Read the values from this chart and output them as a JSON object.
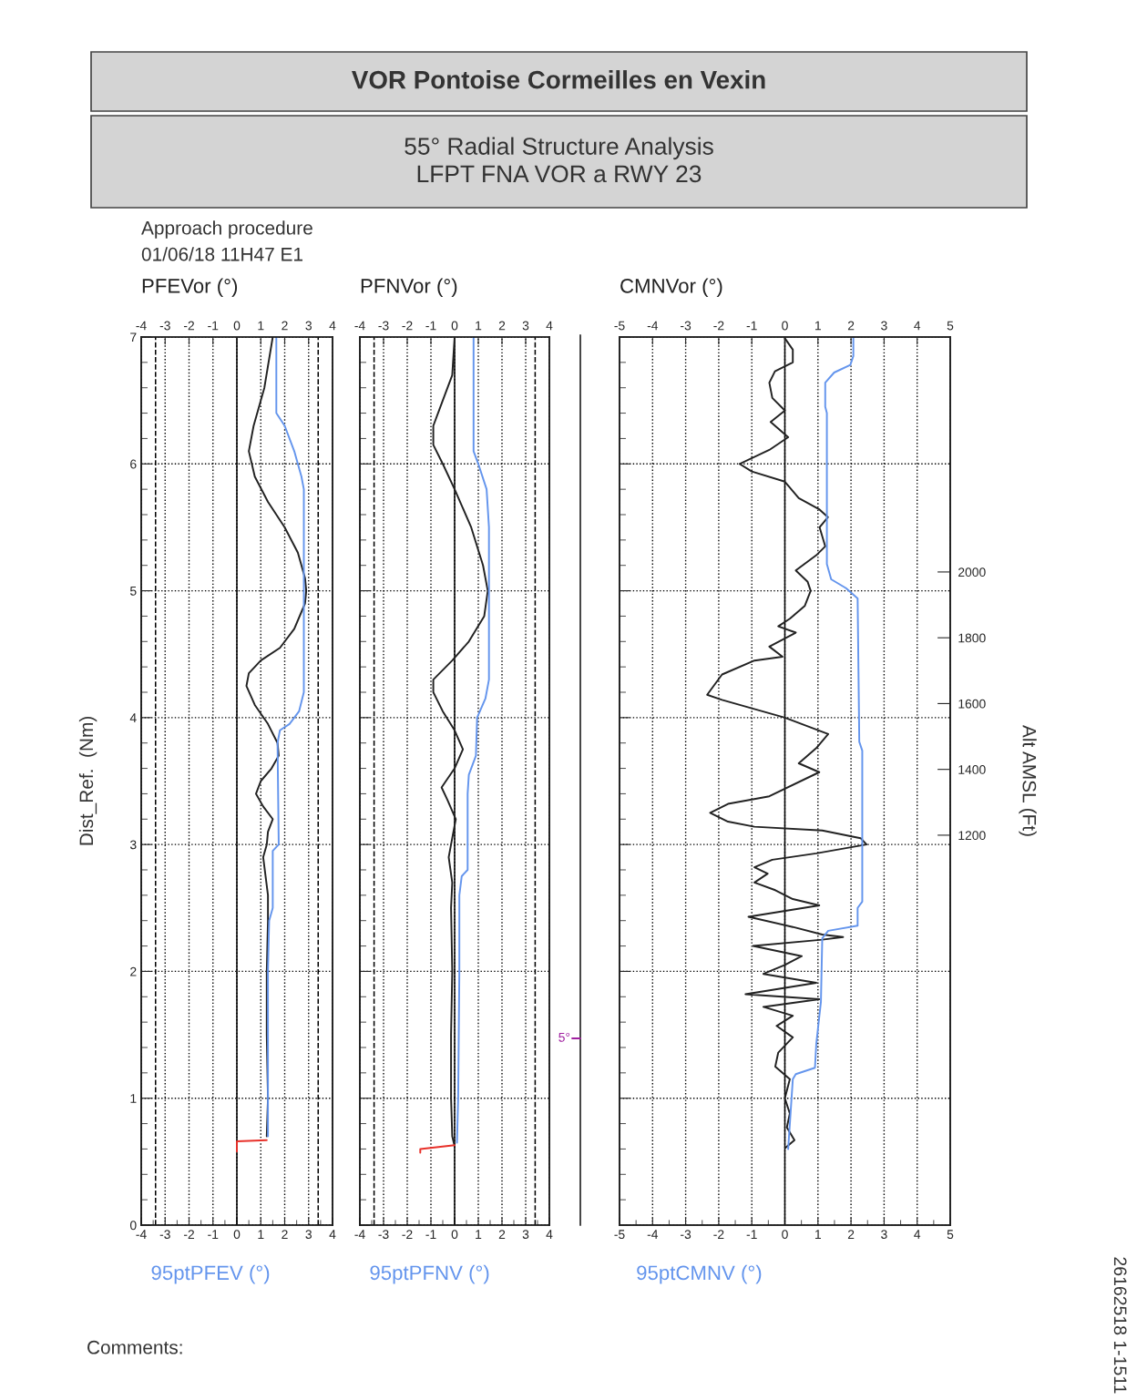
{
  "chart_data": [
    {
      "type": "other",
      "title": "VOR Pontoise Cormeilles en Vexin",
      "subtitle": "55° Radial Structure Analysis\nLFPT FNA VOR a RWY 23"
    },
    {
      "type": "line",
      "annotations": [
        "Approach procedure",
        "01/06/18 11H47 E1",
        "Comments:",
        "26162518 1-1511"
      ],
      "x2label": "PFEVor (°)",
      "xlabel": "95ptPFEV (°)",
      "ylabel": "Dist_Ref.  (Nm)",
      "xlim": [
        -4,
        4
      ],
      "xticks": [
        -4,
        -3,
        -2,
        -1,
        0,
        1,
        2,
        3,
        4
      ],
      "x2lim": [
        -4,
        4
      ],
      "x2ticks": [
        -4,
        -3,
        -2,
        -1,
        0,
        1,
        2,
        3,
        4
      ],
      "ylim": [
        0,
        7
      ],
      "yticks": [
        0,
        1,
        2,
        3,
        4,
        5,
        6,
        7
      ],
      "grid": true,
      "marker": "none",
      "line_style": "solid",
      "ref_lines": [
        {
          "axis": "x",
          "value": 0,
          "color": "#000000",
          "line_style": "solid"
        },
        {
          "axis": "x",
          "value": -3.4,
          "color": "#000000",
          "line_style": "dashed"
        },
        {
          "axis": "x",
          "value": 3.4,
          "color": "#000000",
          "line_style": "dashed"
        }
      ],
      "series": [
        {
          "color": "#222222",
          "x": [
            1.5,
            1.15,
            0.7,
            0.5,
            0.75,
            1.3,
            2.0,
            2.55,
            2.85,
            2.9,
            2.85,
            2.4,
            1.8,
            1.0,
            0.5,
            0.4,
            0.75,
            1.3,
            1.7,
            1.75,
            1.45,
            1.0,
            0.8,
            1.1,
            1.5,
            1.3,
            1.25,
            1.1,
            1.2,
            1.3,
            1.3,
            1.25,
            1.25,
            1.3,
            1.25
          ],
          "values": [
            7.0,
            6.6,
            6.3,
            6.1,
            5.9,
            5.7,
            5.5,
            5.3,
            5.1,
            5.0,
            4.9,
            4.7,
            4.55,
            4.45,
            4.35,
            4.25,
            4.1,
            3.95,
            3.8,
            3.7,
            3.6,
            3.5,
            3.4,
            3.3,
            3.2,
            3.1,
            3.0,
            2.9,
            2.75,
            2.6,
            2.4,
            2.0,
            1.5,
            1.0,
            0.7
          ]
        },
        {
          "color": "#6495ed",
          "x": [
            1.65,
            1.65,
            2.0,
            2.4,
            2.7,
            2.8,
            2.8,
            2.6,
            2.2,
            1.8,
            1.7,
            1.75,
            1.5,
            1.5,
            1.35,
            1.3,
            1.3,
            1.3
          ],
          "values": [
            7.0,
            6.4,
            6.3,
            6.1,
            5.9,
            5.8,
            4.2,
            4.05,
            3.95,
            3.9,
            3.8,
            3.0,
            2.95,
            2.5,
            2.4,
            2.0,
            1.0,
            0.7
          ]
        },
        {
          "color": "#e8312a",
          "x": [
            1.25,
            0,
            0
          ],
          "values": [
            0.67,
            0.66,
            0.58
          ]
        }
      ]
    },
    {
      "type": "line",
      "x2label": "PFNVor (°)",
      "xlabel": "95ptPFNV (°)",
      "annotations": [
        "5°"
      ],
      "xlim": [
        -4,
        4
      ],
      "xticks": [
        -4,
        -3,
        -2,
        -1,
        0,
        1,
        2,
        3,
        4
      ],
      "x2lim": [
        -4,
        4
      ],
      "x2ticks": [
        -4,
        -3,
        -2,
        -1,
        0,
        1,
        2,
        3,
        4
      ],
      "ylim": [
        0,
        7
      ],
      "tick_labels": "x",
      "grid": true,
      "marker": "none",
      "line_style": "solid",
      "ref_lines": [
        {
          "axis": "x",
          "value": 0,
          "color": "#000000",
          "line_style": "solid"
        },
        {
          "axis": "x",
          "value": -3.4,
          "color": "#000000",
          "line_style": "dashed"
        },
        {
          "axis": "x",
          "value": 3.4,
          "color": "#000000",
          "line_style": "dashed"
        }
      ],
      "series": [
        {
          "color": "#222222",
          "x": [
            0.0,
            -0.1,
            -0.5,
            -0.9,
            -0.9,
            -0.5,
            0.0,
            0.7,
            1.2,
            1.4,
            1.25,
            0.6,
            -0.1,
            -0.9,
            -0.9,
            -0.5,
            0.0,
            0.35,
            0.0,
            -0.55,
            -0.3,
            0.05,
            -0.1,
            -0.25,
            -0.1,
            -0.15,
            -0.1,
            -0.15,
            -0.15,
            -0.1,
            0.0
          ],
          "values": [
            7.0,
            6.7,
            6.5,
            6.3,
            6.15,
            6.0,
            5.8,
            5.5,
            5.2,
            5.0,
            4.8,
            4.6,
            4.45,
            4.3,
            4.2,
            4.05,
            3.9,
            3.75,
            3.6,
            3.45,
            3.35,
            3.2,
            3.05,
            2.9,
            2.7,
            2.5,
            2.0,
            1.5,
            1.0,
            0.7,
            0.62
          ]
        },
        {
          "color": "#6495ed",
          "x": [
            0.8,
            0.8,
            1.0,
            1.35,
            1.45,
            1.45,
            1.3,
            0.95,
            0.9,
            0.6,
            0.55,
            0.55,
            0.3,
            0.2,
            0.2,
            0.15,
            0.1
          ],
          "values": [
            7.0,
            6.1,
            6.0,
            5.8,
            5.5,
            4.3,
            4.15,
            4.0,
            3.7,
            3.55,
            3.4,
            2.8,
            2.75,
            2.6,
            2.0,
            1.0,
            0.65
          ]
        },
        {
          "color": "#e8312a",
          "x": [
            0,
            -1.45,
            -1.45
          ],
          "values": [
            0.63,
            0.6,
            0.57
          ]
        }
      ]
    },
    {
      "type": "line",
      "x2label": "CMNVor (°)",
      "xlabel": "95ptCMNV (°)",
      "y2label": "Alt AMSL (Ft)",
      "xlim": [
        -5,
        5
      ],
      "xticks": [
        -5,
        -4,
        -3,
        -2,
        -1,
        0,
        1,
        2,
        3,
        4,
        5
      ],
      "x2lim": [
        -5,
        5
      ],
      "x2ticks": [
        -5,
        -4,
        -3,
        -2,
        -1,
        0,
        1,
        2,
        3,
        4,
        5
      ],
      "ylim": [
        0,
        7
      ],
      "tick_labels": [
        "x",
        "y2"
      ],
      "y2lim": [
        15,
        2714
      ],
      "y2ticks": [
        1200,
        1400,
        1600,
        1800,
        2000
      ],
      "grid": true,
      "marker": "none",
      "line_style": "solid",
      "ref_lines": [
        {
          "axis": "x",
          "value": 0,
          "color": "#000000",
          "line_style": "solid"
        }
      ],
      "series": [
        {
          "color": "#222222",
          "x": [
            0.0,
            0.24,
            0.24,
            -0.3,
            -0.47,
            -0.38,
            0.0,
            -0.43,
            0.1,
            -0.47,
            -1.37,
            -1.0,
            0.0,
            0.42,
            1.05,
            1.3,
            1.05,
            1.22,
            0.95,
            0.33,
            0.69,
            0.78,
            0.6,
            0.15,
            -0.2,
            0.33,
            -0.47,
            -0.07,
            -0.92,
            -1.9,
            -2.35,
            -1.9,
            0.0,
            1.31,
            0.95,
            0.42,
            1.04,
            -0.47,
            -1.72,
            -2.26,
            -1.72,
            -0.92,
            1.13,
            2.29,
            2.47,
            0.95,
            -0.38,
            -0.92,
            -0.52,
            -0.92,
            -0.29,
            0.24,
            1.04,
            -1.1,
            0.24,
            1.13,
            1.76,
            1.13,
            -0.96,
            0.51,
            0.0,
            -0.65,
            0.95,
            -1.19,
            1.04,
            -0.65,
            0.24,
            -0.25,
            0.24,
            -0.2,
            -0.29,
            0.15,
            0.0,
            0.15,
            0.06,
            0.29,
            0.02
          ],
          "values": [
            6.99,
            6.9,
            6.8,
            6.73,
            6.64,
            6.52,
            6.42,
            6.33,
            6.21,
            6.11,
            6.0,
            5.94,
            5.86,
            5.73,
            5.64,
            5.58,
            5.5,
            5.35,
            5.28,
            5.16,
            5.07,
            5.0,
            4.88,
            4.78,
            4.72,
            4.67,
            4.56,
            4.48,
            4.45,
            4.34,
            4.18,
            4.14,
            4.0,
            3.87,
            3.76,
            3.64,
            3.57,
            3.38,
            3.32,
            3.25,
            3.18,
            3.14,
            3.11,
            3.05,
            3.0,
            2.93,
            2.88,
            2.82,
            2.77,
            2.7,
            2.64,
            2.57,
            2.52,
            2.43,
            2.35,
            2.29,
            2.27,
            2.25,
            2.2,
            2.12,
            2.05,
            1.98,
            1.91,
            1.82,
            1.78,
            1.72,
            1.65,
            1.57,
            1.48,
            1.36,
            1.25,
            1.15,
            1.0,
            0.88,
            0.77,
            0.67,
            0.61
          ]
        },
        {
          "color": "#6495ed",
          "x": [
            2.07,
            2.07,
            1.98,
            1.49,
            1.22,
            1.22,
            1.27,
            1.27,
            1.4,
            1.85,
            2.2,
            2.25,
            2.34,
            2.34,
            2.34,
            2.2,
            2.2,
            1.31,
            1.13,
            1.09,
            0.95,
            0.91,
            0.33,
            0.24,
            0.1
          ],
          "values": [
            7.0,
            6.85,
            6.78,
            6.72,
            6.64,
            6.45,
            6.4,
            5.21,
            5.09,
            5.02,
            4.94,
            3.81,
            3.74,
            3.45,
            2.55,
            2.5,
            2.36,
            2.32,
            2.26,
            1.76,
            1.43,
            1.24,
            1.19,
            1.15,
            0.6
          ]
        }
      ]
    }
  ]
}
